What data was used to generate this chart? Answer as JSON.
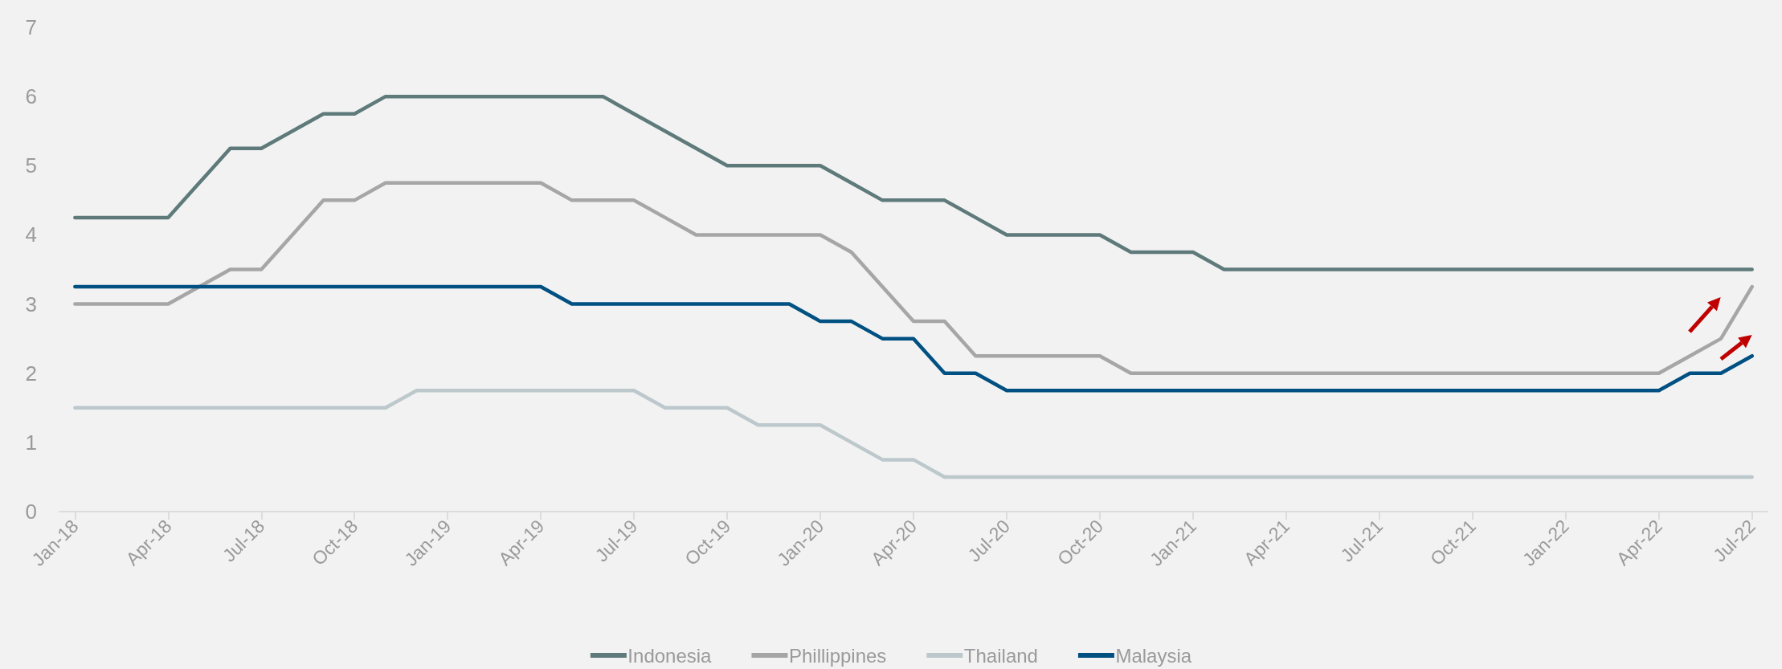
{
  "chart_data": {
    "type": "line",
    "categories": [
      "Jan-18",
      null,
      null,
      "Apr-18",
      null,
      null,
      "Jul-18",
      null,
      null,
      "Oct-18",
      null,
      null,
      "Jan-19",
      null,
      null,
      "Apr-19",
      null,
      null,
      "Jul-19",
      null,
      null,
      "Oct-19",
      null,
      null,
      "Jan-20",
      null,
      null,
      "Apr-20",
      null,
      null,
      "Jul-20",
      null,
      null,
      "Oct-20",
      null,
      null,
      "Jan-21",
      null,
      null,
      "Apr-21",
      null,
      null,
      "Jul-21",
      null,
      null,
      "Oct-21",
      null,
      null,
      "Jan-22",
      null,
      null,
      "Apr-22",
      null,
      null,
      "Jul-22"
    ],
    "series": [
      {
        "name": "Indonesia",
        "color": "#5f7a7b",
        "values": [
          4.25,
          4.25,
          4.25,
          4.25,
          4.75,
          5.25,
          5.25,
          5.5,
          5.75,
          5.75,
          6,
          6,
          6,
          6,
          6,
          6,
          6,
          6,
          5.75,
          5.5,
          5.25,
          5,
          5,
          5,
          5,
          4.75,
          4.5,
          4.5,
          4.5,
          4.25,
          4,
          4,
          4,
          4,
          3.75,
          3.75,
          3.75,
          3.5,
          3.5,
          3.5,
          3.5,
          3.5,
          3.5,
          3.5,
          3.5,
          3.5,
          3.5,
          3.5,
          3.5,
          3.5,
          3.5,
          3.5,
          3.5,
          3.5,
          3.5
        ]
      },
      {
        "name": "Phillippines",
        "color": "#a6a6a6",
        "values": [
          3,
          3,
          3,
          3,
          3.25,
          3.5,
          3.5,
          4,
          4.5,
          4.5,
          4.75,
          4.75,
          4.75,
          4.75,
          4.75,
          4.75,
          4.5,
          4.5,
          4.5,
          4.25,
          4,
          4,
          4,
          4,
          4,
          3.75,
          3.25,
          2.75,
          2.75,
          2.25,
          2.25,
          2.25,
          2.25,
          2.25,
          2,
          2,
          2,
          2,
          2,
          2,
          2,
          2,
          2,
          2,
          2,
          2,
          2,
          2,
          2,
          2,
          2,
          2,
          2.25,
          2.5,
          3.25
        ]
      },
      {
        "name": "Thailand",
        "color": "#bcc8cc",
        "values": [
          1.5,
          1.5,
          1.5,
          1.5,
          1.5,
          1.5,
          1.5,
          1.5,
          1.5,
          1.5,
          1.5,
          1.75,
          1.75,
          1.75,
          1.75,
          1.75,
          1.75,
          1.75,
          1.75,
          1.5,
          1.5,
          1.5,
          1.25,
          1.25,
          1.25,
          1,
          0.75,
          0.75,
          0.5,
          0.5,
          0.5,
          0.5,
          0.5,
          0.5,
          0.5,
          0.5,
          0.5,
          0.5,
          0.5,
          0.5,
          0.5,
          0.5,
          0.5,
          0.5,
          0.5,
          0.5,
          0.5,
          0.5,
          0.5,
          0.5,
          0.5,
          0.5,
          0.5,
          0.5,
          0.5
        ]
      },
      {
        "name": "Malaysia",
        "color": "#005082",
        "values": [
          3.25,
          3.25,
          3.25,
          3.25,
          3.25,
          3.25,
          3.25,
          3.25,
          3.25,
          3.25,
          3.25,
          3.25,
          3.25,
          3.25,
          3.25,
          3.25,
          3,
          3,
          3,
          3,
          3,
          3,
          3,
          3,
          2.75,
          2.75,
          2.5,
          2.5,
          2,
          2,
          1.75,
          1.75,
          1.75,
          1.75,
          1.75,
          1.75,
          1.75,
          1.75,
          1.75,
          1.75,
          1.75,
          1.75,
          1.75,
          1.75,
          1.75,
          1.75,
          1.75,
          1.75,
          1.75,
          1.75,
          1.75,
          1.75,
          2,
          2,
          2.25
        ]
      }
    ],
    "ylim": [
      0,
      7
    ],
    "yticks": [
      0,
      1,
      2,
      3,
      4,
      5,
      6,
      7
    ],
    "grid": false,
    "legend": "bottom",
    "marker": "none",
    "line_style": "solid"
  }
}
